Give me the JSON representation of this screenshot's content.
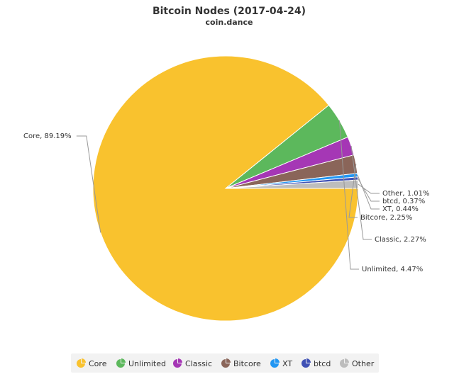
{
  "chart_data": {
    "type": "pie",
    "title": "Bitcoin Nodes (2017-04-24)",
    "subtitle": "coin.dance",
    "legend_position": "bottom",
    "slices": [
      {
        "name": "Core",
        "value": 89.19,
        "label": "Core, 89.19%",
        "color": "#f9c22e"
      },
      {
        "name": "Unlimited",
        "value": 4.47,
        "label": "Unlimited, 4.47%",
        "color": "#5cb85c"
      },
      {
        "name": "Classic",
        "value": 2.27,
        "label": "Classic, 2.27%",
        "color": "#a537b5"
      },
      {
        "name": "Bitcore",
        "value": 2.25,
        "label": "Bitcore, 2.25%",
        "color": "#8a6559"
      },
      {
        "name": "XT",
        "value": 0.44,
        "label": "XT, 0.44%",
        "color": "#2196f3"
      },
      {
        "name": "btcd",
        "value": 0.37,
        "label": "btcd, 0.37%",
        "color": "#3f51b5"
      },
      {
        "name": "Other",
        "value": 1.01,
        "label": "Other, 1.01%",
        "color": "#bdbdbd"
      }
    ]
  }
}
